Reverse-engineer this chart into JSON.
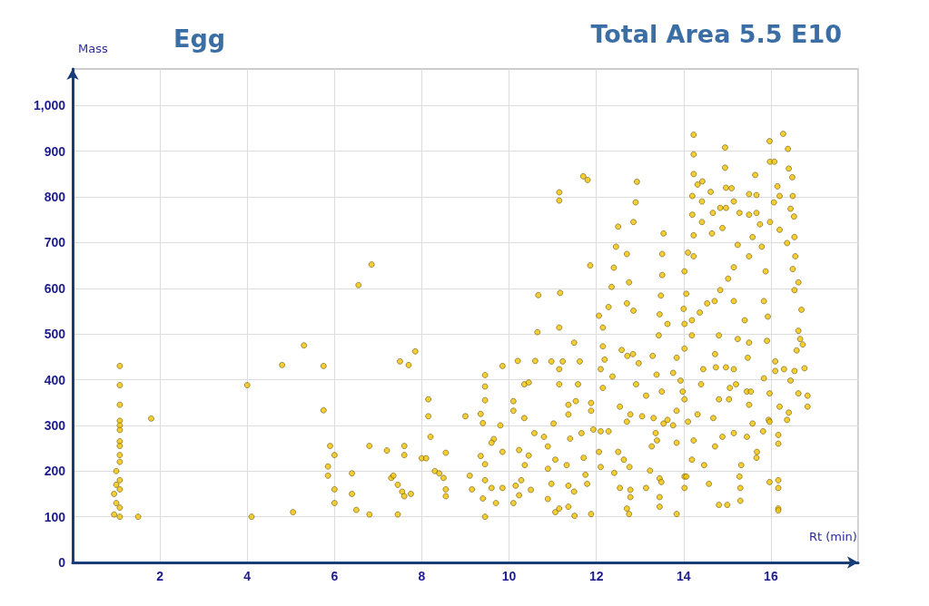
{
  "chart_data": {
    "type": "scatter",
    "title": "Egg",
    "annotations": [
      "Total Area 5.5 E10"
    ],
    "xlabel": "Rt (min)",
    "ylabel": "Mass",
    "xlim": [
      0,
      18
    ],
    "xticks": [
      2,
      4,
      6,
      8,
      10,
      12,
      14,
      16,
      {
        "value": 18,
        "label": null
      }
    ],
    "ylim": [
      0,
      1080
    ],
    "yticks": [
      0,
      100,
      200,
      300,
      400,
      500,
      600,
      700,
      800,
      900,
      {
        "value": 1000,
        "label": "1,000"
      }
    ],
    "grid": true,
    "marker": "circle",
    "series": [
      {
        "color": "#f2c200",
        "x": [
          1.08,
          1.08,
          1.08,
          1.08,
          1.08,
          1.08,
          1.08,
          1.08,
          1.08,
          1.08,
          1.0,
          1.08,
          1.0,
          1.08,
          0.95,
          1.0,
          1.08,
          0.95,
          1.08,
          1.5,
          1.8,
          4.0,
          4.1,
          4.8,
          5.05,
          5.3,
          5.75,
          5.75,
          5.9,
          6.0,
          5.85,
          5.85,
          6.0,
          6.0,
          6.4,
          6.4,
          6.5,
          6.55,
          6.85,
          6.8,
          6.8,
          7.2,
          7.3,
          7.35,
          7.45,
          7.5,
          7.6,
          7.6,
          7.55,
          7.6,
          7.75,
          7.7,
          7.85,
          7.45,
          8.0,
          8.1,
          8.15,
          8.15,
          8.2,
          8.3,
          8.4,
          8.55,
          8.5,
          8.55,
          8.55,
          9.0,
          9.1,
          9.15,
          9.35,
          9.45,
          9.45,
          9.45,
          9.4,
          9.35,
          9.45,
          9.45,
          9.4,
          9.45,
          9.65,
          9.8,
          9.85,
          11.15,
          11.15,
          11.7,
          11.8,
          11.86,
          11.17,
          11.15,
          10.67,
          10.65,
          10.6,
          10.2,
          12.5,
          12.9,
          12.93,
          12.85,
          12.45,
          12.7,
          12.4,
          12.75,
          12.35,
          12.7,
          12.85,
          12.28,
          12.06,
          12.15,
          12.15,
          13.54,
          13.51,
          13.51,
          13.48,
          13.45,
          13.63,
          13.43,
          14.23,
          14.23,
          14.23,
          14.32,
          14.43,
          14.62,
          14.95,
          14.95,
          14.97,
          15.1,
          14.2,
          14.42,
          14.2,
          14.67,
          14.84,
          14.97,
          15.15,
          14.89,
          14.42,
          14.23,
          14.65,
          15.28,
          15.5,
          15.67,
          15.5,
          15.67,
          15.64,
          15.97,
          15.98,
          16.08,
          16.28,
          16.39,
          16.41,
          16.49,
          16.5,
          16.45,
          16.53,
          16.15,
          16.2,
          16.07,
          15.98,
          16.2,
          16.37,
          16.54,
          16.56,
          16.5,
          16.63,
          16.54,
          16.7,
          16.63,
          16.67,
          16.73,
          16.59,
          16.77,
          16.54,
          16.63,
          16.84,
          16.84,
          16.45,
          16.41,
          16.37,
          16.17,
          16.17,
          16.17,
          16.17,
          16.17,
          16.17,
          15.97,
          15.95,
          15.97,
          16.1,
          15.91,
          15.93,
          15.88,
          15.79,
          15.75,
          15.58,
          15.5,
          15.24,
          15.15,
          15.02,
          14.84,
          14.71,
          14.54,
          14.37,
          14.19,
          14.02,
          14.19,
          14.02,
          13.84,
          13.76,
          13.93,
          14.02,
          13.84,
          14.1,
          14.23,
          14.19,
          14.02,
          13.84,
          14.58,
          14.47,
          14.81,
          15.0,
          15.28,
          15.3,
          15.3,
          15.32,
          15.15,
          15.45,
          15.68,
          15.67,
          15.82,
          15.58,
          15.5,
          15.45,
          15.06,
          15.15,
          14.74,
          14.97,
          15.47,
          15.5,
          15.24,
          14.81,
          14.72,
          14.45,
          14.81,
          14.68,
          14.89,
          14.72,
          14.32,
          14.4,
          15.04,
          15.2,
          15.54,
          15.84,
          16.1,
          16.3,
          16.2,
          15.97,
          15.84,
          15.15,
          15.4,
          10.1,
          10.1,
          9.6,
          9.85,
          9.6,
          9.85,
          9.7,
          10.1,
          10.15,
          10.28,
          10.23,
          10.36,
          10.5,
          10.23,
          10.45,
          10.58,
          10.8,
          10.89,
          10.89,
          10.89,
          10.97,
          11.02,
          11.06,
          10.35,
          10.35,
          10.45,
          10.97,
          11.15,
          11.15,
          11.23,
          11.36,
          11.36,
          11.4,
          11.32,
          11.36,
          11.06,
          11.15,
          11.36,
          11.5,
          11.49,
          11.58,
          11.49,
          11.62,
          11.53,
          11.66,
          11.71,
          11.75,
          11.79,
          11.88,
          11.88,
          11.88,
          11.93,
          12.1,
          12.28,
          12.06,
          12.1,
          12.15,
          12.1,
          12.19,
          12.37,
          12.54,
          12.58,
          12.71,
          12.84,
          12.5,
          12.41,
          12.63,
          12.76,
          12.54,
          12.78,
          12.78,
          12.7,
          12.75,
          12.7,
          12.78,
          12.91,
          12.97,
          13.05,
          13.14,
          13.31,
          13.36,
          13.39,
          13.27,
          13.23,
          13.45,
          13.49,
          13.45,
          13.45,
          13.14,
          13.54,
          13.63,
          13.5,
          13.29,
          13.38,
          13.76,
          13.84,
          14.06,
          14.02,
          13.98,
          14.02,
          14.06,
          14.0,
          14.1,
          14.23
        ],
        "values": [
          430,
          388,
          345,
          310,
          300,
          290,
          265,
          255,
          235,
          220,
          200,
          180,
          170,
          160,
          150,
          130,
          120,
          105,
          100,
          100,
          315,
          388,
          100,
          432,
          110,
          475,
          430,
          333,
          255,
          235,
          210,
          190,
          160,
          130,
          195,
          150,
          115,
          607,
          652,
          255,
          105,
          245,
          185,
          190,
          170,
          440,
          255,
          235,
          155,
          145,
          150,
          432,
          462,
          105,
          228,
          228,
          357,
          320,
          275,
          200,
          195,
          240,
          185,
          160,
          145,
          320,
          190,
          160,
          233,
          410,
          385,
          355,
          305,
          325,
          215,
          180,
          140,
          100,
          270,
          300,
          430,
          810,
          792,
          845,
          837,
          650,
          590,
          514,
          585,
          504,
          441,
          441,
          735,
          788,
          833,
          745,
          691,
          675,
          645,
          613,
          603,
          567,
          551,
          559,
          540,
          514,
          473,
          720,
          675,
          629,
          584,
          543,
          522,
          497,
          936,
          893,
          850,
          827,
          834,
          811,
          908,
          864,
          820,
          819,
          802,
          790,
          761,
          765,
          776,
          776,
          790,
          732,
          745,
          716,
          720,
          765,
          761,
          765,
          806,
          804,
          848,
          922,
          877,
          877,
          938,
          905,
          862,
          843,
          802,
          774,
          757,
          823,
          802,
          788,
          745,
          728,
          699,
          712,
          670,
          642,
          613,
          596,
          553,
          507,
          489,
          477,
          464,
          425,
          419,
          370,
          365,
          341,
          398,
          328,
          312,
          279,
          260,
          180,
          163,
          118,
          114,
          176,
          312,
          370,
          419,
          485,
          538,
          637,
          691,
          740,
          712,
          670,
          695,
          646,
          621,
          596,
          572,
          567,
          547,
          530,
          522,
          497,
          468,
          448,
          415,
          398,
          357,
          332,
          308,
          267,
          225,
          188,
          106,
          172,
          213,
          126,
          126,
          188,
          163,
          135,
          213,
          283,
          275,
          242,
          229,
          287,
          304,
          345,
          374,
          382,
          423,
          427,
          427,
          448,
          481,
          489,
          497,
          456,
          423,
          357,
          316,
          275,
          254,
          324,
          390,
          357,
          390,
          374,
          403,
          440,
          423,
          341,
          308,
          572,
          572,
          530,
          353,
          332,
          262,
          242,
          163,
          163,
          130,
          130,
          168,
          180,
          147,
          213,
          159,
          246,
          234,
          283,
          275,
          254,
          205,
          139,
          172,
          304,
          225,
          316,
          390,
          394,
          440,
          423,
          390,
          440,
          345,
          324,
          271,
          213,
          168,
          110,
          118,
          122,
          102,
          155,
          390,
          481,
          440,
          353,
          283,
          229,
          192,
          172,
          106,
          349,
          332,
          291,
          287,
          287,
          242,
          209,
          382,
          423,
          444,
          407,
          341,
          465,
          452,
          456,
          242,
          196,
          225,
          209,
          163,
          159,
          143,
          118,
          106,
          308,
          324,
          390,
          436,
          320,
          365,
          316,
          283,
          267,
          254,
          201,
          184,
          176,
          143,
          122,
          163,
          304,
          312,
          374,
          452,
          411,
          300,
          262,
          188,
          163,
          374,
          637,
          588,
          555,
          678,
          670
        ]
      }
    ]
  }
}
